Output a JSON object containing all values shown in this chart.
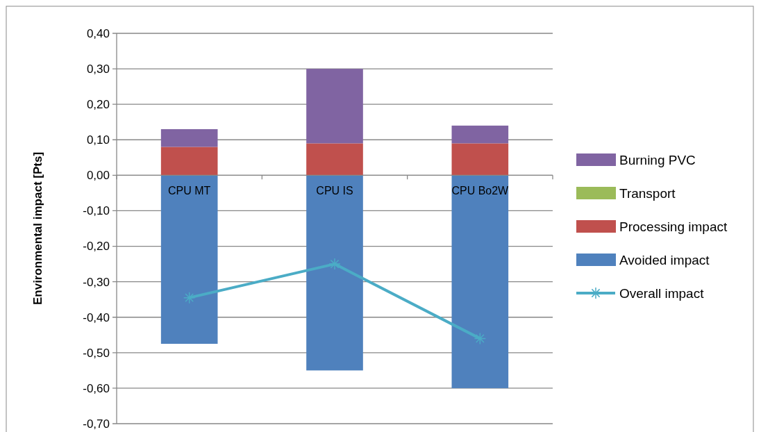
{
  "chart_data": {
    "type": "bar",
    "stacked": true,
    "ylabel": "Environmental impact [Pts]",
    "categories": [
      "CPU MT",
      "CPU IS",
      "CPU Bo2W"
    ],
    "series": [
      {
        "name": "Avoided impact",
        "color": "#4f81bd",
        "values": [
          -0.475,
          -0.55,
          -0.6
        ]
      },
      {
        "name": "Processing impact",
        "color": "#c0504d",
        "values": [
          0.08,
          0.09,
          0.09
        ]
      },
      {
        "name": "Transport",
        "color": "#9bbb59",
        "values": [
          0,
          0,
          0
        ]
      },
      {
        "name": "Burning PVC",
        "color": "#8064a2",
        "values": [
          0.05,
          0.21,
          0.05
        ]
      },
      {
        "name": "Overall impact",
        "type": "line",
        "color": "#4bacc6",
        "marker": "cross",
        "values": [
          -0.345,
          -0.25,
          -0.46
        ]
      }
    ],
    "ylim": [
      -0.7,
      0.4
    ],
    "yticks": [
      {
        "value": 0.4,
        "label": "0,40"
      },
      {
        "value": 0.3,
        "label": "0,30"
      },
      {
        "value": 0.2,
        "label": "0,20"
      },
      {
        "value": 0.1,
        "label": "0,10"
      },
      {
        "value": 0,
        "label": "0,00"
      },
      {
        "value": -0.1,
        "label": "-0,10"
      },
      {
        "value": -0.2,
        "label": "-0,20"
      },
      {
        "value": -0.3,
        "label": "-0,30"
      },
      {
        "value": -0.4,
        "label": "-0,40"
      },
      {
        "value": -0.5,
        "label": "-0,50"
      },
      {
        "value": -0.6,
        "label": "-0,60"
      },
      {
        "value": -0.7,
        "label": "-0,70"
      }
    ],
    "grid": "y",
    "legend": "right"
  }
}
